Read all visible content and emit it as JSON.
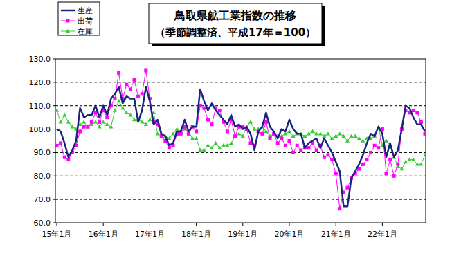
{
  "chart_data": {
    "type": "line",
    "title": "鳥取県鉱工業指数の推移",
    "subtitle": "（季節調整済、平成17年＝100）",
    "categories": [
      "15年1月",
      null,
      null,
      null,
      null,
      null,
      null,
      null,
      null,
      null,
      null,
      null,
      "16年1月",
      null,
      null,
      null,
      null,
      null,
      null,
      null,
      null,
      null,
      null,
      null,
      "17年1月",
      null,
      null,
      null,
      null,
      null,
      null,
      null,
      null,
      null,
      null,
      null,
      "18年1月",
      null,
      null,
      null,
      null,
      null,
      null,
      null,
      null,
      null,
      null,
      null,
      "19年1月",
      null,
      null,
      null,
      null,
      null,
      null,
      null,
      null,
      null,
      null,
      null,
      "20年1月",
      null,
      null,
      null,
      null,
      null,
      null,
      null,
      null,
      null,
      null,
      null,
      "21年1月",
      null,
      null,
      null,
      null,
      null,
      null,
      null,
      null,
      null,
      null,
      null,
      "22年1月",
      null,
      null,
      null,
      null,
      null,
      null,
      null,
      null,
      null,
      null,
      null
    ],
    "series": [
      {
        "name": "生産",
        "color": "#1a237e",
        "marker": "none",
        "line_style": "solid",
        "values": [
          100,
          99,
          94,
          88,
          91,
          95,
          109,
          105,
          106,
          106,
          110,
          105,
          110,
          106,
          113,
          115,
          118,
          111,
          114,
          113,
          113,
          103,
          108,
          118,
          112,
          102,
          104,
          98,
          97,
          93,
          94,
          99,
          99,
          104,
          99,
          101,
          101,
          117,
          112,
          108,
          111,
          108,
          106,
          104,
          102,
          106,
          101,
          102,
          100,
          101,
          98,
          91,
          99,
          101,
          107,
          101,
          99,
          96,
          100,
          99,
          104,
          100,
          98,
          98,
          92,
          94,
          95,
          96,
          92,
          96,
          93,
          90,
          86,
          82,
          67,
          67,
          79,
          82,
          85,
          89,
          94,
          98,
          97,
          101,
          98,
          88,
          94,
          88,
          91,
          100,
          110,
          109,
          105,
          102,
          102,
          99
        ]
      },
      {
        "name": "出荷",
        "color": "#ff00ff",
        "marker": "square",
        "line_style": "solid",
        "values": [
          93,
          94,
          88,
          87,
          90,
          93,
          99,
          101,
          101,
          103,
          107,
          103,
          108,
          105,
          110,
          113,
          124,
          113,
          119,
          117,
          121,
          114,
          115,
          125,
          113,
          103,
          102,
          97,
          95,
          92,
          93,
          98,
          98,
          101,
          98,
          101,
          99,
          110,
          109,
          104,
          102,
          109,
          108,
          103,
          99,
          104,
          97,
          101,
          101,
          100,
          94,
          93,
          99,
          98,
          103,
          96,
          98,
          94,
          96,
          93,
          95,
          90,
          93,
          91,
          92,
          92,
          94,
          91,
          93,
          88,
          89,
          87,
          81,
          66,
          73,
          75,
          79,
          81,
          83,
          85,
          87,
          90,
          93,
          92,
          100,
          81,
          87,
          80,
          85,
          100,
          108,
          107,
          108,
          107,
          103,
          98
        ]
      },
      {
        "name": "在庫",
        "color": "#33cc33",
        "marker": "triangle",
        "line_style": "solid",
        "values": [
          108,
          103,
          106,
          103,
          101,
          100,
          102,
          103,
          101,
          102,
          103,
          101,
          103,
          102,
          101,
          108,
          112,
          109,
          107,
          106,
          104,
          104,
          103,
          102,
          104,
          107,
          98,
          98,
          97,
          96,
          98,
          100,
          99,
          100,
          99,
          96,
          96,
          91,
          91,
          93,
          92,
          94,
          92,
          93,
          93,
          94,
          97,
          98,
          97,
          101,
          103,
          100,
          100,
          101,
          99,
          97,
          98,
          97,
          97,
          98,
          99,
          97,
          98,
          98,
          97,
          98,
          99,
          98,
          98,
          97,
          98,
          96,
          97,
          98,
          97,
          95,
          97,
          97,
          96,
          95,
          96,
          96,
          97,
          101,
          93,
          95,
          93,
          88,
          84,
          83,
          86,
          87,
          87,
          85,
          85,
          89
        ]
      }
    ],
    "ylim": [
      60,
      130
    ],
    "yticks": [
      {
        "value": 60,
        "label": "60.0"
      },
      {
        "value": 70,
        "label": "70.0"
      },
      {
        "value": 80,
        "label": "80.0"
      },
      {
        "value": 90,
        "label": "90.0"
      },
      {
        "value": 100,
        "label": "100.0"
      },
      {
        "value": 110,
        "label": "110.0"
      },
      {
        "value": 120,
        "label": "120.0"
      },
      {
        "value": 130,
        "label": "130.0"
      }
    ],
    "grid": true,
    "legend": "upper left"
  }
}
